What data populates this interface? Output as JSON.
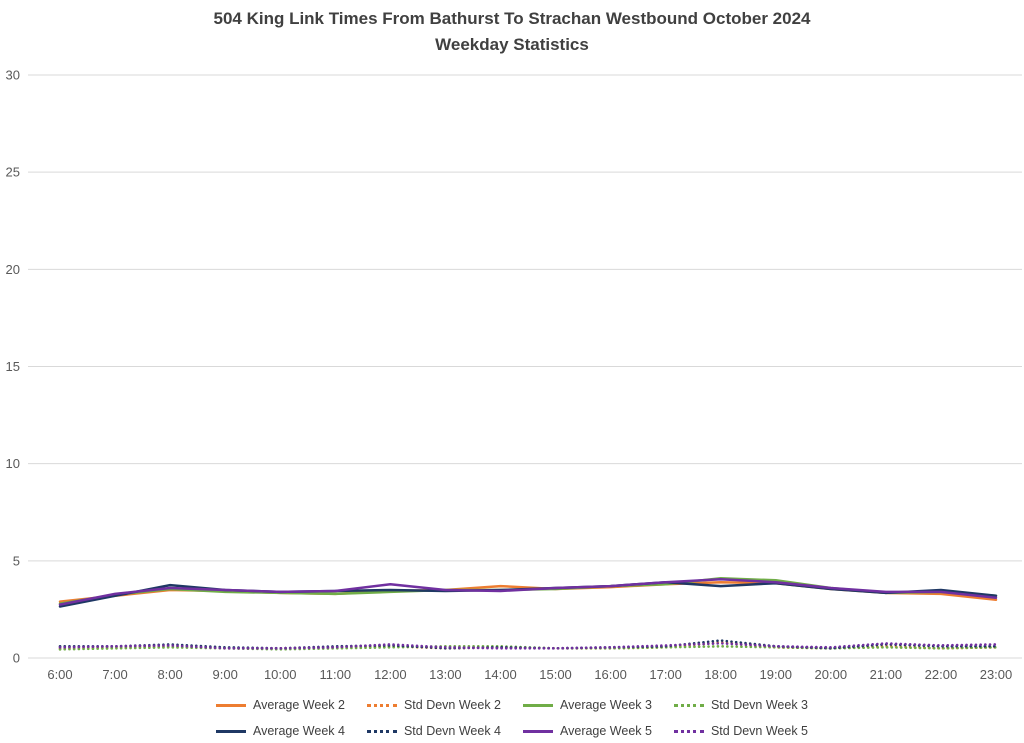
{
  "chart_data": {
    "type": "line",
    "title": "504 King Link Times From Bathurst To Strachan Westbound October 2024",
    "subtitle": "Weekday Statistics",
    "x": [
      "6:00",
      "7:00",
      "8:00",
      "9:00",
      "10:00",
      "11:00",
      "12:00",
      "13:00",
      "14:00",
      "15:00",
      "16:00",
      "17:00",
      "18:00",
      "19:00",
      "20:00",
      "21:00",
      "22:00",
      "23:00"
    ],
    "ylim": [
      0,
      30
    ],
    "yticks": [
      0,
      5,
      10,
      15,
      20,
      25,
      30
    ],
    "grid": "horizontal",
    "legend_position": "bottom",
    "colors": {
      "week2": "#ED7D31",
      "week3": "#70AD47",
      "week4": "#1F3864",
      "week5": "#7030A0",
      "gridline": "#D9D9D9",
      "axis_text": "#595959",
      "title_text": "#404040"
    },
    "series": [
      {
        "name": "Average Week 2",
        "color": "#ED7D31",
        "style": "solid",
        "values": [
          2.9,
          3.2,
          3.5,
          3.45,
          3.35,
          3.3,
          3.45,
          3.5,
          3.7,
          3.55,
          3.65,
          3.8,
          3.9,
          3.85,
          3.55,
          3.35,
          3.3,
          3.0
        ]
      },
      {
        "name": "Std Devn Week 2",
        "color": "#ED7D31",
        "style": "dotted",
        "values": [
          0.5,
          0.55,
          0.6,
          0.5,
          0.5,
          0.55,
          0.6,
          0.5,
          0.55,
          0.5,
          0.5,
          0.55,
          0.8,
          0.55,
          0.5,
          0.6,
          0.5,
          0.55
        ]
      },
      {
        "name": "Average Week 3",
        "color": "#70AD47",
        "style": "solid",
        "values": [
          2.8,
          3.25,
          3.55,
          3.4,
          3.35,
          3.3,
          3.4,
          3.5,
          3.5,
          3.55,
          3.7,
          3.8,
          4.1,
          4.0,
          3.6,
          3.35,
          3.4,
          3.2
        ]
      },
      {
        "name": "Std Devn Week 3",
        "color": "#70AD47",
        "style": "dotted",
        "values": [
          0.45,
          0.5,
          0.55,
          0.5,
          0.45,
          0.5,
          0.55,
          0.6,
          0.6,
          0.5,
          0.5,
          0.55,
          0.6,
          0.55,
          0.5,
          0.55,
          0.5,
          0.55
        ]
      },
      {
        "name": "Average Week 4",
        "color": "#1F3864",
        "style": "solid",
        "values": [
          2.65,
          3.2,
          3.75,
          3.5,
          3.4,
          3.45,
          3.5,
          3.45,
          3.5,
          3.6,
          3.7,
          3.9,
          3.7,
          3.85,
          3.55,
          3.35,
          3.5,
          3.2
        ]
      },
      {
        "name": "Std Devn Week 4",
        "color": "#1F3864",
        "style": "dotted",
        "values": [
          0.6,
          0.6,
          0.7,
          0.55,
          0.5,
          0.6,
          0.65,
          0.5,
          0.55,
          0.5,
          0.55,
          0.6,
          0.9,
          0.6,
          0.5,
          0.7,
          0.6,
          0.6
        ]
      },
      {
        "name": "Average Week 5",
        "color": "#7030A0",
        "style": "solid",
        "values": [
          2.75,
          3.3,
          3.6,
          3.5,
          3.4,
          3.45,
          3.8,
          3.5,
          3.45,
          3.6,
          3.7,
          3.9,
          4.05,
          3.9,
          3.6,
          3.4,
          3.4,
          3.1
        ]
      },
      {
        "name": "Std Devn Week 5",
        "color": "#7030A0",
        "style": "dotted",
        "values": [
          0.55,
          0.6,
          0.65,
          0.5,
          0.5,
          0.55,
          0.7,
          0.55,
          0.5,
          0.5,
          0.55,
          0.65,
          0.75,
          0.6,
          0.55,
          0.75,
          0.65,
          0.7
        ]
      }
    ]
  }
}
